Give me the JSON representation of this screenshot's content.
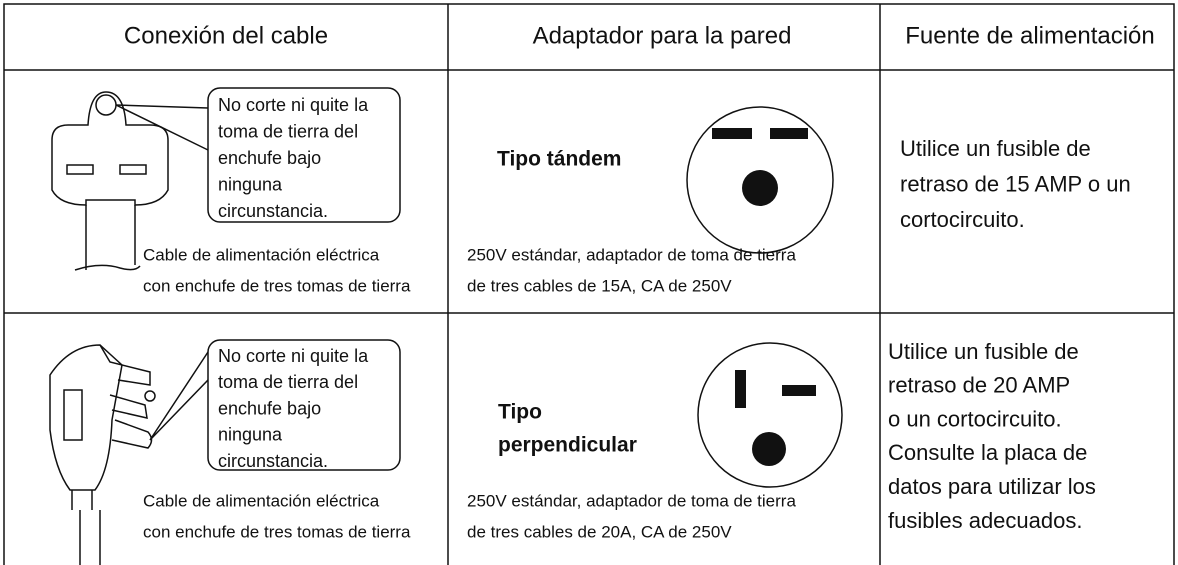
{
  "header": {
    "columns": [
      "Conexión del cable",
      "Adaptador para la pared",
      "Fuente de alimentación"
    ]
  },
  "rows": [
    {
      "plug_note": [
        "No corte ni quite la",
        "toma de tierra del",
        "enchufe bajo",
        "ninguna",
        "circunstancia."
      ],
      "plug_caption": [
        "Cable de alimentación eléctrica",
        "con enchufe de tres tomas de tierra"
      ],
      "outlet_type": [
        "Tipo tándem"
      ],
      "outlet_caption": [
        "250V estándar, adaptador de toma de tierra",
        "de tres cables de 15A, CA de 250V"
      ],
      "fuse": [
        "Utilice un fusible de",
        "retraso de 15 AMP o un",
        "cortocircuito."
      ]
    },
    {
      "plug_note": [
        "No corte ni quite la",
        "toma de tierra del",
        "enchufe bajo",
        "ninguna",
        "circunstancia."
      ],
      "plug_caption": [
        "Cable de alimentación eléctrica",
        "con enchufe de tres tomas de tierra"
      ],
      "outlet_type": [
        "Tipo",
        "perpendicular"
      ],
      "outlet_caption": [
        "250V estándar, adaptador de toma de tierra",
        "de tres cables de 20A, CA de 250V"
      ],
      "fuse": [
        "Utilice un fusible de",
        "retraso de 20 AMP",
        "o un cortocircuito.",
        "Consulte la placa de",
        "datos para utilizar los",
        "fusibles adecuados."
      ]
    }
  ]
}
